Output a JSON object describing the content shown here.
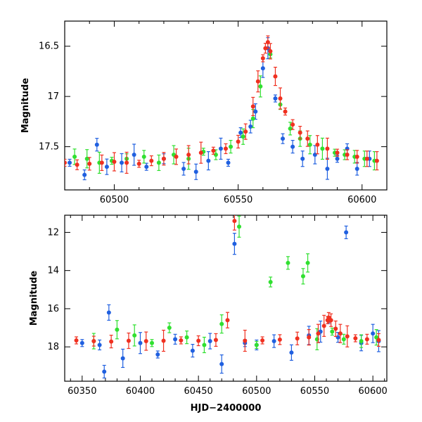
{
  "chart_data": [
    {
      "type": "scatter",
      "title": "",
      "xlabel": "",
      "ylabel": "Magnitude",
      "xlim": [
        60480,
        60610
      ],
      "ylim": [
        17.93,
        16.25
      ],
      "y_inverted": true,
      "xticks": [
        60500,
        60550,
        60600
      ],
      "yticks": [
        16.5,
        17,
        17.5
      ],
      "ytick_labels": [
        "16.5",
        "17",
        "17.5"
      ],
      "grid": false,
      "legend": "none",
      "series": [
        {
          "color": "#2060e0",
          "x": [
            60482,
            60488,
            60493,
            60497,
            60503,
            60508,
            60513,
            60520,
            60528,
            60533,
            60538,
            60543,
            60546,
            60551,
            60555,
            60557,
            60560,
            60562,
            60565,
            60568,
            60572,
            60576,
            60581,
            60586,
            60590,
            60594,
            60598,
            60603
          ],
          "y": [
            17.66,
            17.78,
            17.48,
            17.7,
            17.66,
            17.58,
            17.7,
            17.62,
            17.72,
            17.75,
            17.64,
            17.52,
            17.66,
            17.36,
            17.3,
            17.15,
            16.72,
            16.52,
            17.02,
            17.42,
            17.5,
            17.62,
            17.58,
            17.72,
            17.62,
            17.52,
            17.72,
            17.62
          ]
        },
        {
          "color": "#30e030",
          "x": [
            60484,
            60489,
            60494,
            60499,
            60505,
            60512,
            60518,
            60524,
            60530,
            60536,
            60541,
            60547,
            60552,
            60556,
            60559,
            60563,
            60567,
            60571,
            60575,
            60579,
            60584,
            60589,
            60593,
            60597,
            60601,
            60605
          ],
          "y": [
            17.6,
            17.62,
            17.66,
            17.64,
            17.62,
            17.6,
            17.66,
            17.58,
            17.62,
            17.55,
            17.58,
            17.5,
            17.4,
            17.22,
            16.9,
            16.58,
            17.08,
            17.32,
            17.42,
            17.48,
            17.52,
            17.56,
            17.58,
            17.6,
            17.62,
            17.64
          ]
        },
        {
          "color": "#f03020",
          "x": [
            60480,
            60485,
            60490,
            60495,
            60500,
            60505,
            60510,
            60515,
            60520,
            60525,
            60530,
            60535,
            60540,
            60545,
            60550,
            60553,
            60556,
            60558,
            60560,
            60561,
            60562,
            60563,
            60565,
            60567,
            60569,
            60572,
            60575,
            60578,
            60582,
            60586,
            60590,
            60594,
            60598,
            60602,
            60606
          ],
          "y": [
            17.66,
            17.68,
            17.67,
            17.66,
            17.65,
            17.66,
            17.67,
            17.64,
            17.62,
            17.6,
            17.58,
            17.56,
            17.54,
            17.52,
            17.45,
            17.35,
            17.1,
            16.85,
            16.62,
            16.52,
            16.46,
            16.55,
            16.8,
            17.02,
            17.15,
            17.28,
            17.36,
            17.42,
            17.48,
            17.52,
            17.56,
            17.58,
            17.6,
            17.62,
            17.64
          ]
        }
      ]
    },
    {
      "type": "scatter",
      "title": "",
      "xlabel": "HJD−2400000",
      "ylabel": "Magnitude",
      "xlim": [
        60335,
        60612
      ],
      "ylim": [
        19.8,
        11.1
      ],
      "y_inverted": true,
      "xticks": [
        60350,
        60400,
        60450,
        60500,
        60550,
        60600
      ],
      "yticks": [
        12,
        14,
        16,
        18
      ],
      "ytick_labels": [
        "12",
        "14",
        "16",
        "18"
      ],
      "grid": false,
      "legend": "none",
      "series": [
        {
          "color": "#2060e0",
          "x": [
            60350,
            60365,
            60369,
            60373,
            60385,
            60400,
            60415,
            60430,
            60445,
            60460,
            60470,
            60481,
            60490,
            60500,
            60515,
            60530,
            60545,
            60555,
            60562,
            60570,
            60577,
            60590,
            60600,
            60605
          ],
          "y": [
            17.8,
            17.9,
            19.3,
            16.2,
            18.6,
            17.8,
            18.4,
            17.6,
            18.2,
            17.7,
            18.9,
            12.6,
            17.8,
            17.9,
            17.7,
            18.3,
            17.4,
            17.2,
            16.6,
            17.5,
            12.0,
            17.8,
            17.3,
            17.7
          ]
        },
        {
          "color": "#30e030",
          "x": [
            60360,
            60380,
            60395,
            60410,
            60425,
            60440,
            60455,
            60470,
            60485,
            60500,
            60512,
            60527,
            60540,
            60544,
            60552,
            60565,
            60575,
            60590,
            60603
          ],
          "y": [
            17.7,
            17.1,
            17.4,
            17.8,
            17.0,
            17.5,
            17.9,
            16.8,
            11.7,
            17.9,
            14.6,
            13.6,
            14.3,
            13.6,
            17.6,
            17.2,
            17.6,
            17.7,
            17.5
          ]
        },
        {
          "color": "#f03020",
          "x": [
            60345,
            60360,
            60375,
            60390,
            60405,
            60420,
            60435,
            60450,
            60465,
            60475,
            60481,
            60490,
            60505,
            60520,
            60535,
            60545,
            60553,
            60558,
            60561,
            60562,
            60564,
            60568,
            60572,
            60578,
            60585,
            60595,
            60605
          ],
          "y": [
            17.66,
            17.7,
            17.72,
            17.68,
            17.7,
            17.68,
            17.66,
            17.68,
            17.64,
            16.6,
            11.4,
            17.68,
            17.66,
            17.62,
            17.56,
            17.5,
            17.3,
            16.9,
            16.6,
            16.46,
            16.6,
            17.05,
            17.3,
            17.45,
            17.55,
            17.6,
            17.64
          ]
        }
      ]
    }
  ]
}
